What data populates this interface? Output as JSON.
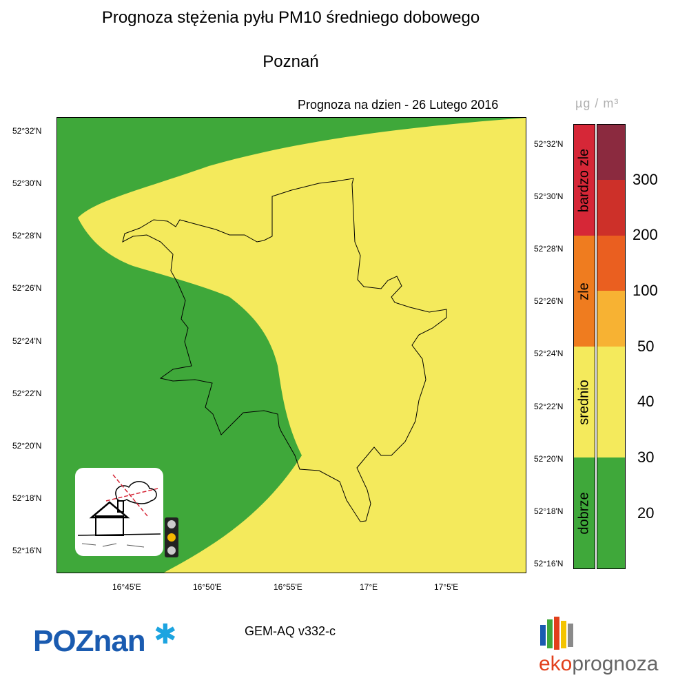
{
  "header": {
    "title": "Prognoza stężenia pyłu PM10 średniego dobowego",
    "city": "Poznań",
    "forecast_date": "Prognoza na dzien -  26 Lutego 2016",
    "unit": "µg / m³"
  },
  "map": {
    "lat_labels_left": [
      "52°32'N",
      "52°30'N",
      "52°28'N",
      "52°26'N",
      "52°24'N",
      "52°22'N",
      "52°20'N",
      "52°18'N",
      "52°16'N"
    ],
    "lat_labels_right": [
      "52°32'N",
      "52°30'N",
      "52°28'N",
      "52°26'N",
      "52°24'N",
      "52°22'N",
      "52°20'N",
      "52°18'N",
      "52°16'N"
    ],
    "lon_labels": [
      "16°45'E",
      "16°50'E",
      "16°55'E",
      "17°E",
      "17°5'E"
    ],
    "colors": {
      "good": "#3fa83a",
      "medium": "#f4ea5c",
      "boundary": "#000000"
    },
    "icons": [
      "house-smog-icon",
      "traffic-light-icon"
    ]
  },
  "legend": {
    "categories": [
      {
        "label": "bardzo zle",
        "color": "#d62737"
      },
      {
        "label": "zle",
        "color": "#ef7c1f"
      },
      {
        "label": "srednio",
        "color": "#f4ea5c"
      },
      {
        "label": "dobrze",
        "color": "#3fa83a"
      }
    ],
    "scale_colors": [
      "#8b2a3f",
      "#cd3029",
      "#ea5f20",
      "#f7b233",
      "#f4ea5c",
      "#3fa83a"
    ],
    "scale_labels": [
      "300",
      "200",
      "100",
      "50",
      "40",
      "30",
      "20"
    ]
  },
  "footer": {
    "model": "GEM-AQ v332-c",
    "logo_left": "POZnan",
    "logo_right_prefix": "eko",
    "logo_right_suffix": "prognoza"
  }
}
